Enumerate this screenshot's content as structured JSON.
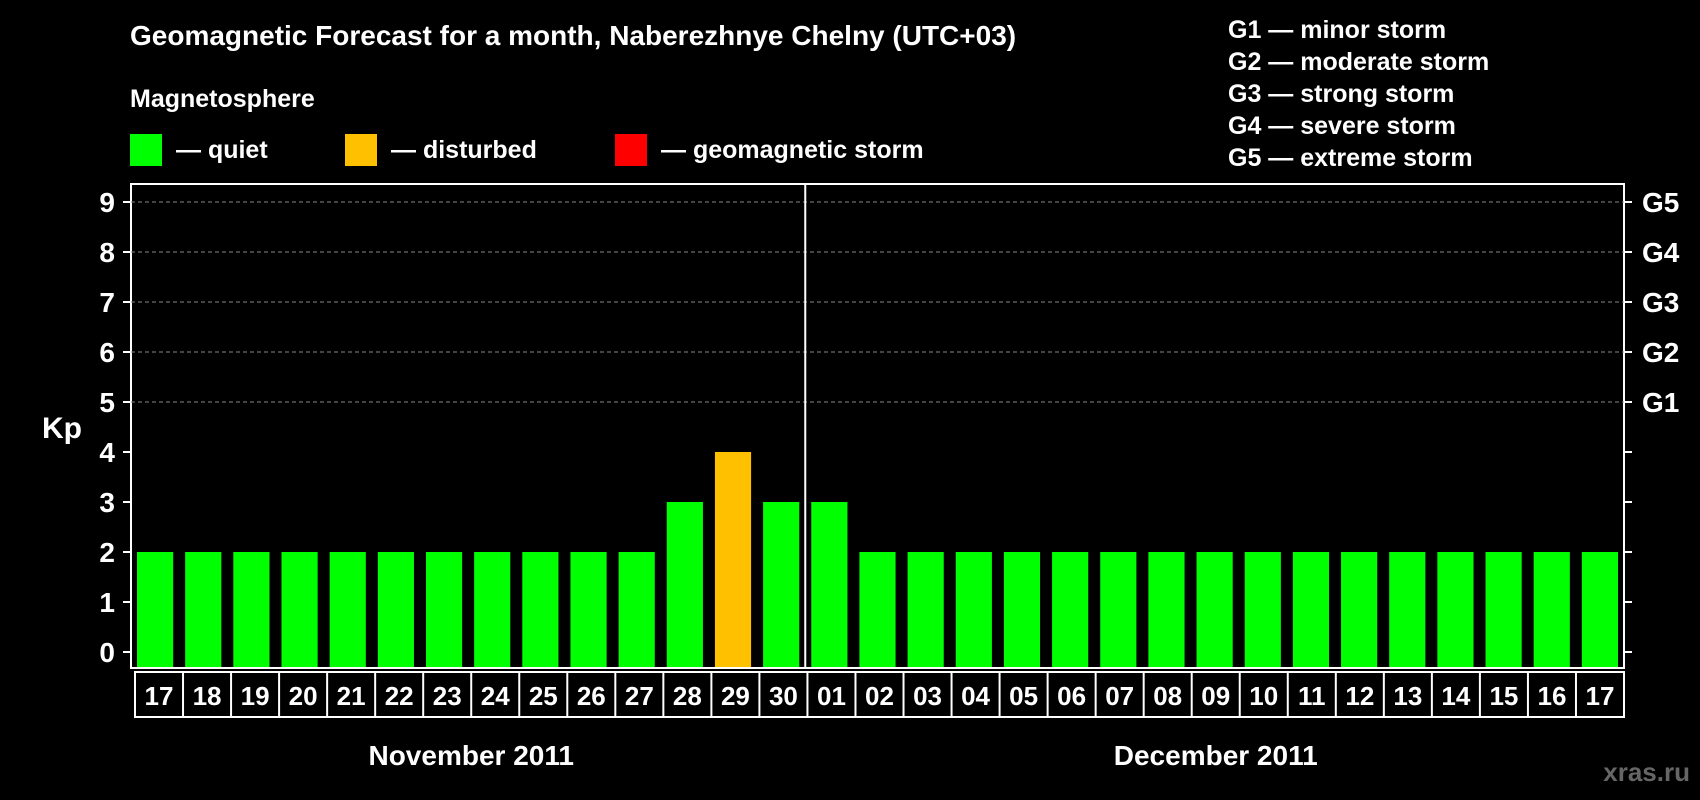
{
  "title": "Geomagnetic Forecast for a month, Naberezhnye Chelny (UTC+03)",
  "section_label": "Magnetosphere",
  "legend": [
    {
      "label": "— quiet",
      "color": "#00ff00"
    },
    {
      "label": "— disturbed",
      "color": "#ffc000"
    },
    {
      "label": "— geomagnetic storm",
      "color": "#ff0000"
    }
  ],
  "g_scale": [
    "G1 — minor storm",
    "G2 — moderate storm",
    "G3 — strong storm",
    "G4 — severe storm",
    "G5 — extreme storm"
  ],
  "watermark": "xras.ru",
  "chart_data": {
    "type": "bar",
    "ylabel": "Kp",
    "ylim": [
      0,
      9
    ],
    "yticks": [
      "0",
      "1",
      "2",
      "3",
      "4",
      "5",
      "6",
      "7",
      "8",
      "9"
    ],
    "right_axis_labels": [
      {
        "kp": 5,
        "label": "G1"
      },
      {
        "kp": 6,
        "label": "G2"
      },
      {
        "kp": 7,
        "label": "G3"
      },
      {
        "kp": 8,
        "label": "G4"
      },
      {
        "kp": 9,
        "label": "G5"
      }
    ],
    "grid": "dashed horizontal at Kp 5-9",
    "categories": [
      "17",
      "18",
      "19",
      "20",
      "21",
      "22",
      "23",
      "24",
      "25",
      "26",
      "27",
      "28",
      "29",
      "30",
      "01",
      "02",
      "03",
      "04",
      "05",
      "06",
      "07",
      "08",
      "09",
      "10",
      "11",
      "12",
      "13",
      "14",
      "15",
      "16",
      "17"
    ],
    "values": [
      2,
      2,
      2,
      2,
      2,
      2,
      2,
      2,
      2,
      2,
      2,
      3,
      4,
      3,
      3,
      2,
      2,
      2,
      2,
      2,
      2,
      2,
      2,
      2,
      2,
      2,
      2,
      2,
      2,
      2,
      2
    ],
    "status": [
      "quiet",
      "quiet",
      "quiet",
      "quiet",
      "quiet",
      "quiet",
      "quiet",
      "quiet",
      "quiet",
      "quiet",
      "quiet",
      "quiet",
      "disturbed",
      "quiet",
      "quiet",
      "quiet",
      "quiet",
      "quiet",
      "quiet",
      "quiet",
      "quiet",
      "quiet",
      "quiet",
      "quiet",
      "quiet",
      "quiet",
      "quiet",
      "quiet",
      "quiet",
      "quiet",
      "quiet"
    ],
    "status_colors": {
      "quiet": "#00ff00",
      "disturbed": "#ffc000",
      "storm": "#ff0000"
    },
    "months": [
      {
        "label": "November 2011",
        "first_index": 0,
        "last_index": 13
      },
      {
        "label": "December 2011",
        "first_index": 14,
        "last_index": 30
      }
    ]
  }
}
